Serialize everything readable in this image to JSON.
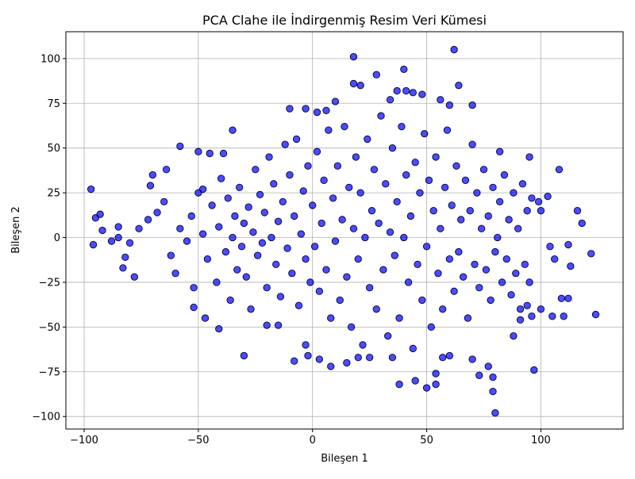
{
  "chart_data": {
    "type": "scatter",
    "title": "PCA Clahe ile İndirgenmiş Resim Veri Kümesi",
    "xlabel": "Bileşen 1",
    "ylabel": "Bileşen 2",
    "xlim": [
      -108,
      136
    ],
    "ylim": [
      -107,
      115
    ],
    "xticks": [
      -100,
      -50,
      0,
      50,
      100
    ],
    "yticks": [
      -100,
      -75,
      -50,
      -25,
      0,
      25,
      50,
      75,
      100
    ],
    "grid": true,
    "legend": "none",
    "colors": {
      "marker_fill": "#0000ff",
      "marker_edge": "#000033",
      "grid": "#b0b0b0",
      "axes": "#000000"
    },
    "marker_alpha": 0.7,
    "series": [
      {
        "points": [
          [
            18,
            101
          ],
          [
            62,
            105
          ],
          [
            40,
            94
          ],
          [
            28,
            91
          ],
          [
            64,
            85
          ],
          [
            21,
            85
          ],
          [
            18,
            86
          ],
          [
            37,
            82
          ],
          [
            41,
            82
          ],
          [
            44,
            81
          ],
          [
            48,
            80
          ],
          [
            10,
            76
          ],
          [
            56,
            77
          ],
          [
            60,
            74
          ],
          [
            -10,
            72
          ],
          [
            -3,
            72
          ],
          [
            2,
            70
          ],
          [
            6,
            71
          ],
          [
            34,
            77
          ],
          [
            70,
            74
          ],
          [
            82,
            48
          ],
          [
            99,
            20
          ],
          [
            103,
            23
          ],
          [
            -35,
            60
          ],
          [
            -97,
            27
          ],
          [
            -95,
            11
          ],
          [
            -93,
            13
          ],
          [
            -92,
            4
          ],
          [
            -96,
            -4
          ],
          [
            -88,
            -2
          ],
          [
            -85,
            6
          ],
          [
            -82,
            -11
          ],
          [
            -83,
            -17
          ],
          [
            -78,
            -22
          ],
          [
            -71,
            29
          ],
          [
            -64,
            38
          ],
          [
            -70,
            35
          ],
          [
            -58,
            51
          ],
          [
            -50,
            48
          ],
          [
            -45,
            47
          ],
          [
            -39,
            47
          ],
          [
            -48,
            27
          ],
          [
            -52,
            -39
          ],
          [
            -47,
            -45
          ],
          [
            -41,
            -51
          ],
          [
            -30,
            -66
          ],
          [
            -20,
            -49
          ],
          [
            -15,
            -49
          ],
          [
            -3,
            -60
          ],
          [
            -2,
            -66
          ],
          [
            -8,
            -69
          ],
          [
            3,
            -68
          ],
          [
            8,
            -72
          ],
          [
            15,
            -70
          ],
          [
            20,
            -67
          ],
          [
            25,
            -67
          ],
          [
            35,
            -67
          ],
          [
            38,
            -82
          ],
          [
            45,
            -80
          ],
          [
            50,
            -84
          ],
          [
            54,
            -82
          ],
          [
            54,
            -76
          ],
          [
            57,
            -67
          ],
          [
            60,
            -66
          ],
          [
            70,
            -68
          ],
          [
            73,
            -77
          ],
          [
            77,
            -72
          ],
          [
            79,
            -78
          ],
          [
            79,
            -86
          ],
          [
            80,
            -98
          ],
          [
            97,
            -74
          ],
          [
            88,
            -55
          ],
          [
            91,
            -46
          ],
          [
            94,
            -38
          ],
          [
            96,
            -44
          ],
          [
            105,
            -44
          ],
          [
            109,
            -34
          ],
          [
            112,
            -34
          ],
          [
            110,
            -44
          ],
          [
            100,
            -40
          ],
          [
            113,
            -16
          ],
          [
            112,
            -4
          ],
          [
            116,
            15
          ],
          [
            118,
            8
          ],
          [
            122,
            -9
          ],
          [
            124,
            -43
          ],
          [
            108,
            38
          ],
          [
            95,
            45
          ],
          [
            96,
            22
          ],
          [
            100,
            15
          ],
          [
            104,
            -5
          ],
          [
            106,
            -12
          ],
          [
            -85,
            0
          ],
          [
            -80,
            -3
          ],
          [
            -76,
            5
          ],
          [
            -72,
            10
          ],
          [
            -68,
            14
          ],
          [
            -65,
            20
          ],
          [
            -62,
            -10
          ],
          [
            -60,
            -20
          ],
          [
            -58,
            5
          ],
          [
            -55,
            -2
          ],
          [
            -53,
            12
          ],
          [
            -52,
            -28
          ],
          [
            -50,
            25
          ],
          [
            -48,
            2
          ],
          [
            -46,
            -12
          ],
          [
            -44,
            18
          ],
          [
            -42,
            -25
          ],
          [
            -41,
            6
          ],
          [
            -40,
            33
          ],
          [
            -38,
            -8
          ],
          [
            -37,
            22
          ],
          [
            -36,
            -35
          ],
          [
            -35,
            0
          ],
          [
            -34,
            12
          ],
          [
            -33,
            -18
          ],
          [
            -32,
            28
          ],
          [
            -31,
            -5
          ],
          [
            -30,
            8
          ],
          [
            -29,
            -22
          ],
          [
            -28,
            17
          ],
          [
            -27,
            -40
          ],
          [
            -26,
            3
          ],
          [
            -25,
            38
          ],
          [
            -24,
            -10
          ],
          [
            -23,
            24
          ],
          [
            -22,
            -3
          ],
          [
            -21,
            14
          ],
          [
            -20,
            -28
          ],
          [
            -19,
            45
          ],
          [
            -18,
            0
          ],
          [
            -17,
            30
          ],
          [
            -16,
            -15
          ],
          [
            -15,
            9
          ],
          [
            -14,
            -33
          ],
          [
            -13,
            20
          ],
          [
            -12,
            52
          ],
          [
            -11,
            -6
          ],
          [
            -10,
            35
          ],
          [
            -9,
            -20
          ],
          [
            -8,
            12
          ],
          [
            -7,
            55
          ],
          [
            -6,
            -38
          ],
          [
            -5,
            2
          ],
          [
            -4,
            26
          ],
          [
            -3,
            -12
          ],
          [
            -2,
            40
          ],
          [
            -1,
            -25
          ],
          [
            0,
            18
          ],
          [
            1,
            -5
          ],
          [
            2,
            48
          ],
          [
            3,
            -30
          ],
          [
            4,
            8
          ],
          [
            5,
            32
          ],
          [
            6,
            -18
          ],
          [
            7,
            60
          ],
          [
            8,
            -45
          ],
          [
            9,
            22
          ],
          [
            10,
            -2
          ],
          [
            11,
            40
          ],
          [
            12,
            -35
          ],
          [
            13,
            10
          ],
          [
            14,
            62
          ],
          [
            15,
            -22
          ],
          [
            16,
            28
          ],
          [
            17,
            -50
          ],
          [
            18,
            5
          ],
          [
            19,
            45
          ],
          [
            20,
            -12
          ],
          [
            21,
            25
          ],
          [
            22,
            -60
          ],
          [
            23,
            0
          ],
          [
            24,
            55
          ],
          [
            25,
            -28
          ],
          [
            26,
            15
          ],
          [
            27,
            38
          ],
          [
            28,
            -40
          ],
          [
            29,
            8
          ],
          [
            30,
            68
          ],
          [
            31,
            -18
          ],
          [
            32,
            30
          ],
          [
            33,
            -55
          ],
          [
            34,
            3
          ],
          [
            35,
            50
          ],
          [
            36,
            -10
          ],
          [
            37,
            20
          ],
          [
            38,
            -45
          ],
          [
            39,
            62
          ],
          [
            40,
            0
          ],
          [
            41,
            35
          ],
          [
            42,
            -25
          ],
          [
            43,
            12
          ],
          [
            44,
            -62
          ],
          [
            45,
            42
          ],
          [
            46,
            -15
          ],
          [
            47,
            25
          ],
          [
            48,
            -35
          ],
          [
            49,
            58
          ],
          [
            50,
            -5
          ],
          [
            51,
            32
          ],
          [
            52,
            -50
          ],
          [
            53,
            15
          ],
          [
            54,
            45
          ],
          [
            55,
            -20
          ],
          [
            56,
            5
          ],
          [
            57,
            -40
          ],
          [
            58,
            28
          ],
          [
            59,
            60
          ],
          [
            60,
            -12
          ],
          [
            61,
            18
          ],
          [
            62,
            -30
          ],
          [
            63,
            40
          ],
          [
            64,
            -8
          ],
          [
            65,
            10
          ],
          [
            66,
            -22
          ],
          [
            67,
            32
          ],
          [
            68,
            -45
          ],
          [
            69,
            15
          ],
          [
            70,
            52
          ],
          [
            71,
            -15
          ],
          [
            72,
            25
          ],
          [
            73,
            -28
          ],
          [
            74,
            5
          ],
          [
            75,
            38
          ],
          [
            76,
            -18
          ],
          [
            77,
            12
          ],
          [
            78,
            -35
          ],
          [
            79,
            28
          ],
          [
            80,
            -8
          ],
          [
            81,
            0
          ],
          [
            82,
            20
          ],
          [
            83,
            -25
          ],
          [
            84,
            35
          ],
          [
            85,
            -12
          ],
          [
            86,
            10
          ],
          [
            87,
            -32
          ],
          [
            88,
            25
          ],
          [
            89,
            -20
          ],
          [
            90,
            5
          ],
          [
            91,
            -40
          ],
          [
            92,
            30
          ],
          [
            93,
            -15
          ],
          [
            94,
            15
          ],
          [
            95,
            -25
          ]
        ]
      }
    ]
  }
}
